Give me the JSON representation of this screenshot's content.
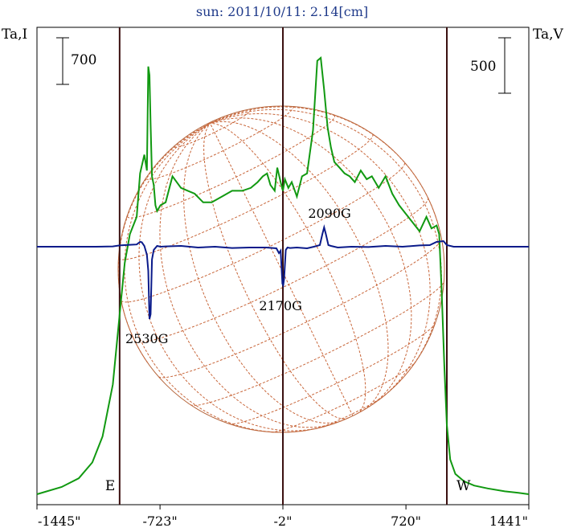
{
  "chart_data": {
    "type": "line",
    "title": "sun: 2011/10/11: 2.14[cm]",
    "ylabel_left": "Ta,I",
    "ylabel_right": "Ta,V",
    "scale_bar_left": "700",
    "scale_bar_right": "500",
    "x_ticks": [
      -1445,
      -723,
      -2,
      720,
      1441
    ],
    "x_tick_labels": [
      "-1445\"",
      "-723\"",
      "-2\"",
      "720\"",
      "1441\""
    ],
    "xlim": [
      -1445,
      1441
    ],
    "limb_labels": [
      "E",
      "W"
    ],
    "limb_positions": [
      -960,
      960
    ],
    "center_line": -2,
    "annotations": [
      {
        "text": "2530G",
        "x": -785
      },
      {
        "text": "2170G",
        "x": 0
      },
      {
        "text": "2090G",
        "x": 240
      }
    ],
    "grid": false,
    "series": [
      {
        "name": "I",
        "color": "#119911",
        "x": [
          -1445,
          -1300,
          -1200,
          -1120,
          -1060,
          -1000,
          -960,
          -930,
          -900,
          -860,
          -840,
          -815,
          -800,
          -792,
          -785,
          -778,
          -770,
          -760,
          -750,
          -740,
          -720,
          -690,
          -650,
          -600,
          -560,
          -520,
          -470,
          -420,
          -360,
          -300,
          -240,
          -190,
          -150,
          -120,
          -95,
          -75,
          -50,
          -35,
          -15,
          -2,
          10,
          30,
          50,
          80,
          110,
          140,
          175,
          200,
          220,
          240,
          260,
          280,
          300,
          330,
          360,
          390,
          420,
          455,
          490,
          520,
          560,
          600,
          640,
          680,
          720,
          760,
          800,
          840,
          870,
          900,
          915,
          930,
          945,
          960,
          980,
          1010,
          1060,
          1120,
          1200,
          1300,
          1380,
          1441
        ],
        "y": [
          0,
          25,
          55,
          110,
          200,
          380,
          620,
          800,
          900,
          960,
          1110,
          1175,
          1120,
          1480,
          1450,
          1280,
          1100,
          1070,
          1000,
          980,
          1000,
          1010,
          1100,
          1060,
          1050,
          1040,
          1010,
          1010,
          1030,
          1050,
          1050,
          1060,
          1080,
          1100,
          1110,
          1070,
          1050,
          1130,
          1080,
          1050,
          1090,
          1060,
          1080,
          1030,
          1100,
          1110,
          1260,
          1500,
          1510,
          1400,
          1270,
          1200,
          1150,
          1130,
          1110,
          1100,
          1080,
          1120,
          1090,
          1100,
          1060,
          1100,
          1040,
          1000,
          970,
          940,
          910,
          960,
          920,
          930,
          900,
          700,
          450,
          240,
          120,
          70,
          45,
          30,
          20,
          10,
          5,
          0
        ]
      },
      {
        "name": "V",
        "color": "#0a1a8a",
        "x": [
          -1445,
          -1100,
          -1000,
          -960,
          -900,
          -860,
          -840,
          -830,
          -815,
          -800,
          -792,
          -785,
          -778,
          -770,
          -760,
          -740,
          -720,
          -690,
          -600,
          -500,
          -400,
          -300,
          -200,
          -100,
          -40,
          -25,
          -15,
          -5,
          0,
          5,
          15,
          25,
          40,
          80,
          140,
          180,
          215,
          230,
          240,
          250,
          265,
          280,
          320,
          400,
          500,
          600,
          700,
          800,
          860,
          900,
          940,
          960,
          1000,
          1100,
          1441
        ],
        "y": [
          0,
          0,
          2,
          8,
          12,
          14,
          30,
          28,
          5,
          -50,
          -150,
          -450,
          -420,
          -80,
          -20,
          5,
          0,
          2,
          5,
          -5,
          0,
          -8,
          -5,
          -5,
          -10,
          -40,
          -25,
          -230,
          -240,
          -200,
          -20,
          -5,
          -8,
          -5,
          -10,
          0,
          10,
          80,
          120,
          80,
          10,
          5,
          -5,
          0,
          -2,
          5,
          0,
          8,
          10,
          30,
          35,
          10,
          0,
          0,
          0
        ]
      }
    ]
  }
}
